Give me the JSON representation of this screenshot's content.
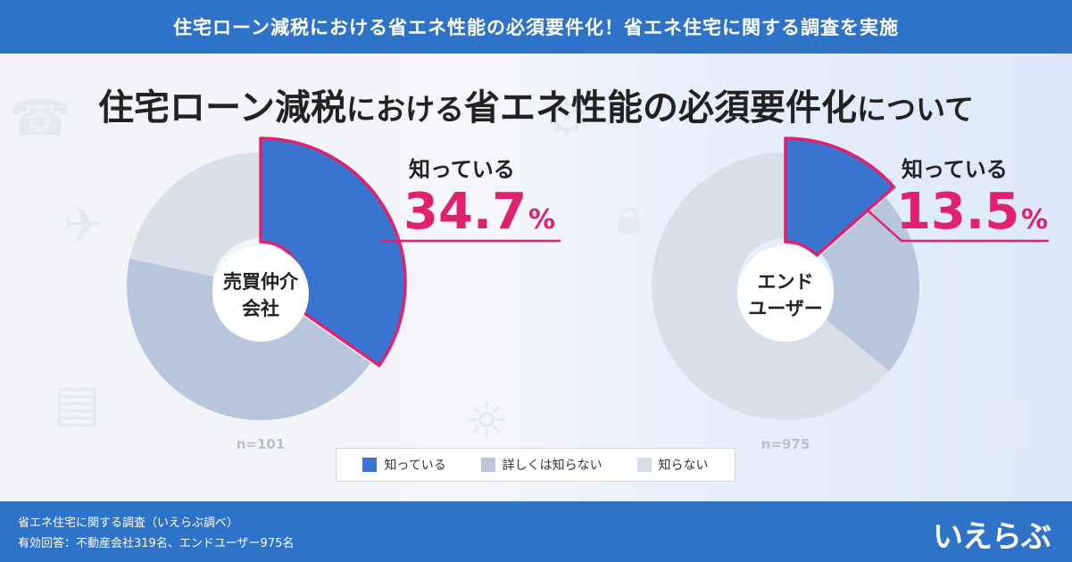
{
  "banner": {
    "title": "住宅ローン減税における省エネ性能の必須要件化！省エネ住宅に関する調査を実施"
  },
  "main_title": {
    "parts": [
      {
        "text": "住宅ローン減税",
        "size": "big"
      },
      {
        "text": "における",
        "size": "small"
      },
      {
        "text": "省エネ性能の必須要件化",
        "size": "big"
      },
      {
        "text": "について",
        "size": "small"
      }
    ]
  },
  "colors": {
    "know": "#3a74d1",
    "not_detail": "#b8c6dc",
    "not_know": "#d9dfe9",
    "accent": "#e0226e",
    "label_text": "#222222"
  },
  "chart_data": [
    {
      "type": "pie",
      "center_label": [
        "売買仲介",
        "会社"
      ],
      "n_label": "n=101",
      "callout_label": "知っている",
      "callout_value": "34.7",
      "callout_unit": "%",
      "slices": [
        {
          "name": "知っている",
          "value": 34.7
        },
        {
          "name": "詳しくは知らない",
          "value": 43.6
        },
        {
          "name": "知らない",
          "value": 21.7
        }
      ]
    },
    {
      "type": "pie",
      "center_label": [
        "エンド",
        "ユーザー"
      ],
      "n_label": "n=975",
      "callout_label": "知っている",
      "callout_value": "13.5",
      "callout_unit": "%",
      "slices": [
        {
          "name": "知っている",
          "value": 13.5
        },
        {
          "name": "詳しくは知らない",
          "value": 22.4
        },
        {
          "name": "知らない",
          "value": 64.1
        }
      ]
    }
  ],
  "legend": [
    {
      "label": "知っている",
      "color": "#3a74d1"
    },
    {
      "label": "詳しくは知らない",
      "color": "#b8c6dc"
    },
    {
      "label": "知らない",
      "color": "#d9dfe9"
    }
  ],
  "footer": {
    "line1": "省エネ住宅に関する調査（いえらぶ調べ）",
    "line2": "有効回答：不動産会社319名、エンドユーザー975名",
    "logo": "いえらぶ"
  }
}
